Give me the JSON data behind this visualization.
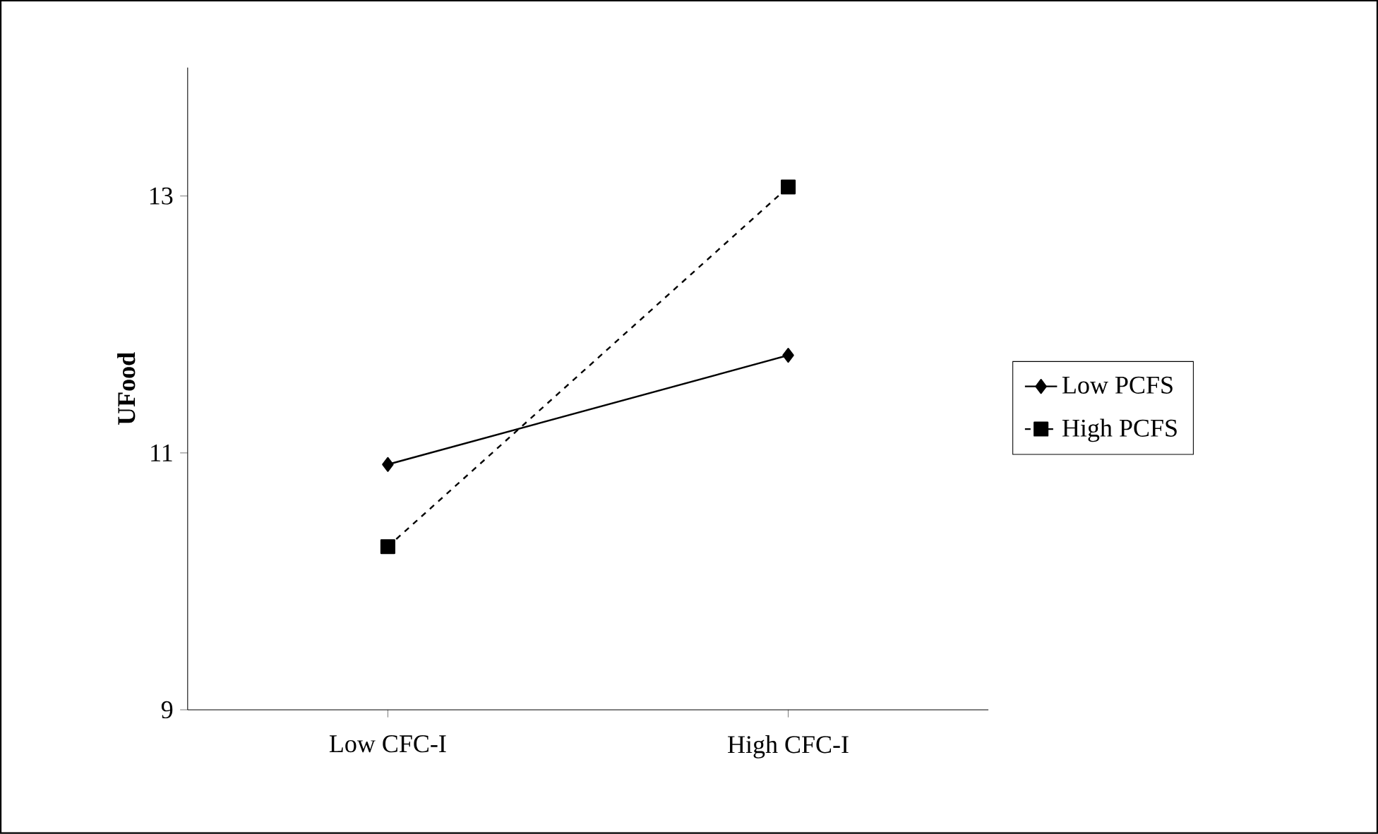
{
  "chart_data": {
    "type": "line",
    "ylabel": "UFood",
    "categories": [
      "Low CFC-I",
      "High CFC-I"
    ],
    "ylim": [
      9,
      14
    ],
    "yticks": [
      9,
      11,
      13
    ],
    "legend": "right",
    "series": [
      {
        "name": "Low PCFS",
        "color": "#000000",
        "values": [
          10.91,
          11.76
        ],
        "marker": "diamond",
        "line_style": "solid"
      },
      {
        "name": "High PCFS",
        "color": "#000000",
        "values": [
          10.27,
          13.07
        ],
        "marker": "square",
        "line_style": "dashed"
      }
    ]
  }
}
